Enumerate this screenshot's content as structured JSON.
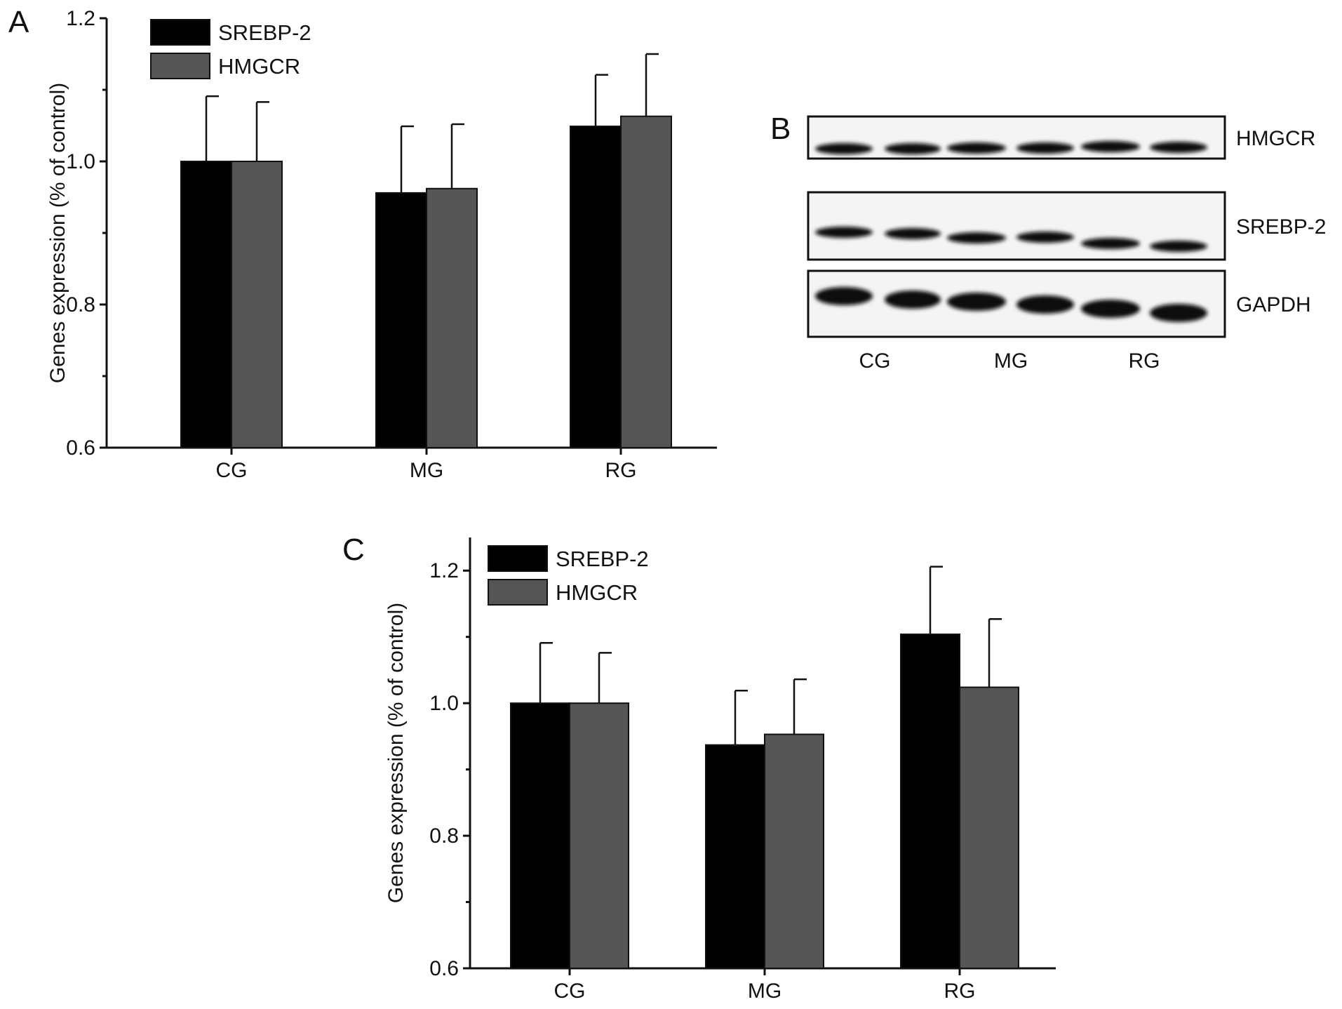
{
  "chart_data": [
    {
      "panel": "A",
      "type": "bar",
      "ylabel": "Genes expression (% of control)",
      "xlabel": "",
      "ylim": [
        0.6,
        1.2
      ],
      "yticks": [
        "0.6",
        "0.8",
        "1.0",
        "1.2"
      ],
      "categories": [
        "CG",
        "MG",
        "RG"
      ],
      "legend_position": "top-left",
      "series": [
        {
          "name": "SREBP-2",
          "color": "#000000",
          "values": [
            1.0,
            0.956,
            1.049
          ],
          "errors": [
            0.091,
            0.093,
            0.072
          ]
        },
        {
          "name": "HMGCR",
          "color": "#555555",
          "values": [
            1.0,
            0.962,
            1.063
          ],
          "errors": [
            0.083,
            0.09,
            0.087
          ]
        }
      ]
    },
    {
      "panel": "C",
      "type": "bar",
      "ylabel": "Genes expression (% of control)",
      "xlabel": "",
      "ylim": [
        0.6,
        1.25
      ],
      "yticks": [
        "0.6",
        "0.8",
        "1.0",
        "1.2"
      ],
      "categories": [
        "CG",
        "MG",
        "RG"
      ],
      "legend_position": "top-left",
      "series": [
        {
          "name": "SREBP-2",
          "color": "#000000",
          "values": [
            1.0,
            0.937,
            1.104
          ],
          "errors": [
            0.091,
            0.082,
            0.102
          ]
        },
        {
          "name": "HMGCR",
          "color": "#555555",
          "values": [
            1.0,
            0.953,
            1.024
          ],
          "errors": [
            0.076,
            0.083,
            0.103
          ]
        }
      ]
    }
  ],
  "blot": {
    "panel": "B",
    "rows": [
      {
        "label": "HMGCR"
      },
      {
        "label": "SREBP-2"
      },
      {
        "label": "GAPDH"
      }
    ],
    "groups": [
      "CG",
      "MG",
      "RG"
    ],
    "lanes_per_group": 2
  }
}
